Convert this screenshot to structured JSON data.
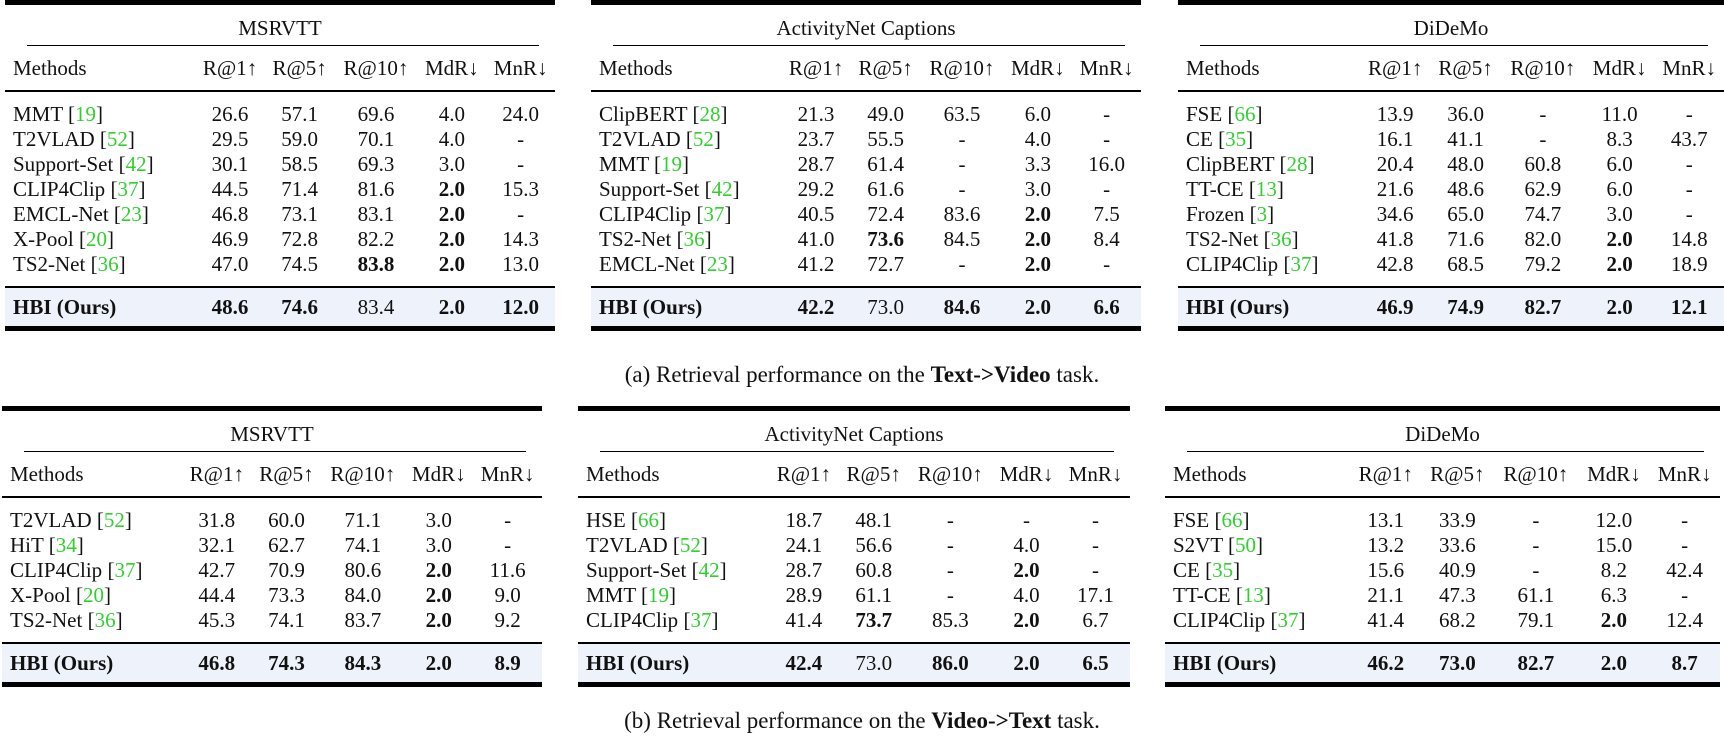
{
  "columns": [
    "Methods",
    "R@1↑",
    "R@5↑",
    "R@10↑",
    "MdR↓",
    "MnR↓"
  ],
  "colors": {
    "citation": "#2fd02f",
    "ours_row_bg": "#eef3fb",
    "rule": "#000000"
  },
  "text_to_video": {
    "caption": {
      "prefix": "(a) Retrieval performance on the ",
      "task": "Text->Video",
      "suffix": " task."
    },
    "tables": [
      {
        "dataset": "MSRVTT",
        "rows": [
          {
            "method": "MMT",
            "cite": "19",
            "values": [
              "26.6",
              "57.1",
              "69.6",
              "4.0",
              "24.0"
            ],
            "bold": []
          },
          {
            "method": "T2VLAD",
            "cite": "52",
            "values": [
              "29.5",
              "59.0",
              "70.1",
              "4.0",
              "-"
            ],
            "bold": []
          },
          {
            "method": "Support-Set",
            "cite": "42",
            "values": [
              "30.1",
              "58.5",
              "69.3",
              "3.0",
              "-"
            ],
            "bold": []
          },
          {
            "method": "CLIP4Clip",
            "cite": "37",
            "values": [
              "44.5",
              "71.4",
              "81.6",
              "2.0",
              "15.3"
            ],
            "bold": [
              3
            ]
          },
          {
            "method": "EMCL-Net",
            "cite": "23",
            "values": [
              "46.8",
              "73.1",
              "83.1",
              "2.0",
              "-"
            ],
            "bold": [
              3
            ]
          },
          {
            "method": "X-Pool",
            "cite": "20",
            "values": [
              "46.9",
              "72.8",
              "82.2",
              "2.0",
              "14.3"
            ],
            "bold": [
              3
            ]
          },
          {
            "method": "TS2-Net",
            "cite": "36",
            "values": [
              "47.0",
              "74.5",
              "83.8",
              "2.0",
              "13.0"
            ],
            "bold": [
              2,
              3
            ]
          }
        ],
        "ours": {
          "method": "HBI (Ours)",
          "values": [
            "48.6",
            "74.6",
            "83.4",
            "2.0",
            "12.0"
          ],
          "bold": [
            0,
            1,
            3,
            4
          ]
        }
      },
      {
        "dataset": "ActivityNet Captions",
        "rows": [
          {
            "method": "ClipBERT",
            "cite": "28",
            "values": [
              "21.3",
              "49.0",
              "63.5",
              "6.0",
              "-"
            ],
            "bold": []
          },
          {
            "method": "T2VLAD",
            "cite": "52",
            "values": [
              "23.7",
              "55.5",
              "-",
              "4.0",
              "-"
            ],
            "bold": []
          },
          {
            "method": "MMT",
            "cite": "19",
            "values": [
              "28.7",
              "61.4",
              "-",
              "3.3",
              "16.0"
            ],
            "bold": []
          },
          {
            "method": "Support-Set",
            "cite": "42",
            "values": [
              "29.2",
              "61.6",
              "-",
              "3.0",
              "-"
            ],
            "bold": []
          },
          {
            "method": "CLIP4Clip",
            "cite": "37",
            "values": [
              "40.5",
              "72.4",
              "83.6",
              "2.0",
              "7.5"
            ],
            "bold": [
              3
            ]
          },
          {
            "method": "TS2-Net",
            "cite": "36",
            "values": [
              "41.0",
              "73.6",
              "84.5",
              "2.0",
              "8.4"
            ],
            "bold": [
              1,
              3
            ]
          },
          {
            "method": "EMCL-Net",
            "cite": "23",
            "values": [
              "41.2",
              "72.7",
              "-",
              "2.0",
              "-"
            ],
            "bold": [
              3
            ]
          }
        ],
        "ours": {
          "method": "HBI (Ours)",
          "values": [
            "42.2",
            "73.0",
            "84.6",
            "2.0",
            "6.6"
          ],
          "bold": [
            0,
            2,
            3,
            4
          ]
        }
      },
      {
        "dataset": "DiDeMo",
        "rows": [
          {
            "method": "FSE",
            "cite": "66",
            "values": [
              "13.9",
              "36.0",
              "-",
              "11.0",
              "-"
            ],
            "bold": []
          },
          {
            "method": "CE",
            "cite": "35",
            "values": [
              "16.1",
              "41.1",
              "-",
              "8.3",
              "43.7"
            ],
            "bold": []
          },
          {
            "method": "ClipBERT",
            "cite": "28",
            "values": [
              "20.4",
              "48.0",
              "60.8",
              "6.0",
              "-"
            ],
            "bold": []
          },
          {
            "method": "TT-CE",
            "cite": "13",
            "values": [
              "21.6",
              "48.6",
              "62.9",
              "6.0",
              "-"
            ],
            "bold": []
          },
          {
            "method": "Frozen",
            "cite": "3",
            "values": [
              "34.6",
              "65.0",
              "74.7",
              "3.0",
              "-"
            ],
            "bold": []
          },
          {
            "method": "TS2-Net",
            "cite": "36",
            "values": [
              "41.8",
              "71.6",
              "82.0",
              "2.0",
              "14.8"
            ],
            "bold": [
              3
            ]
          },
          {
            "method": "CLIP4Clip",
            "cite": "37",
            "values": [
              "42.8",
              "68.5",
              "79.2",
              "2.0",
              "18.9"
            ],
            "bold": [
              3
            ]
          }
        ],
        "ours": {
          "method": "HBI (Ours)",
          "values": [
            "46.9",
            "74.9",
            "82.7",
            "2.0",
            "12.1"
          ],
          "bold": [
            0,
            1,
            2,
            3,
            4
          ]
        }
      }
    ]
  },
  "video_to_text": {
    "caption": {
      "prefix": "(b) Retrieval performance on the ",
      "task": "Video->Text",
      "suffix": " task."
    },
    "tables": [
      {
        "dataset": "MSRVTT",
        "rows": [
          {
            "method": "T2VLAD",
            "cite": "52",
            "values": [
              "31.8",
              "60.0",
              "71.1",
              "3.0",
              "-"
            ],
            "bold": []
          },
          {
            "method": "HiT",
            "cite": "34",
            "values": [
              "32.1",
              "62.7",
              "74.1",
              "3.0",
              "-"
            ],
            "bold": []
          },
          {
            "method": "CLIP4Clip",
            "cite": "37",
            "values": [
              "42.7",
              "70.9",
              "80.6",
              "2.0",
              "11.6"
            ],
            "bold": [
              3
            ]
          },
          {
            "method": "X-Pool",
            "cite": "20",
            "values": [
              "44.4",
              "73.3",
              "84.0",
              "2.0",
              "9.0"
            ],
            "bold": [
              3
            ]
          },
          {
            "method": "TS2-Net",
            "cite": "36",
            "values": [
              "45.3",
              "74.1",
              "83.7",
              "2.0",
              "9.2"
            ],
            "bold": [
              3
            ]
          }
        ],
        "ours": {
          "method": "HBI (Ours)",
          "values": [
            "46.8",
            "74.3",
            "84.3",
            "2.0",
            "8.9"
          ],
          "bold": [
            0,
            1,
            2,
            3,
            4
          ]
        }
      },
      {
        "dataset": "ActivityNet Captions",
        "rows": [
          {
            "method": "HSE",
            "cite": "66",
            "values": [
              "18.7",
              "48.1",
              "-",
              "-",
              "-"
            ],
            "bold": []
          },
          {
            "method": "T2VLAD",
            "cite": "52",
            "values": [
              "24.1",
              "56.6",
              "-",
              "4.0",
              "-"
            ],
            "bold": []
          },
          {
            "method": "Support-Set",
            "cite": "42",
            "values": [
              "28.7",
              "60.8",
              "-",
              "2.0",
              "-"
            ],
            "bold": [
              3
            ]
          },
          {
            "method": "MMT",
            "cite": "19",
            "values": [
              "28.9",
              "61.1",
              "-",
              "4.0",
              "17.1"
            ],
            "bold": []
          },
          {
            "method": "CLIP4Clip",
            "cite": "37",
            "values": [
              "41.4",
              "73.7",
              "85.3",
              "2.0",
              "6.7"
            ],
            "bold": [
              1,
              3
            ]
          }
        ],
        "ours": {
          "method": "HBI (Ours)",
          "values": [
            "42.4",
            "73.0",
            "86.0",
            "2.0",
            "6.5"
          ],
          "bold": [
            0,
            2,
            3,
            4
          ]
        }
      },
      {
        "dataset": "DiDeMo",
        "rows": [
          {
            "method": "FSE",
            "cite": "66",
            "values": [
              "13.1",
              "33.9",
              "-",
              "12.0",
              "-"
            ],
            "bold": []
          },
          {
            "method": "S2VT",
            "cite": "50",
            "values": [
              "13.2",
              "33.6",
              "-",
              "15.0",
              "-"
            ],
            "bold": []
          },
          {
            "method": "CE",
            "cite": "35",
            "values": [
              "15.6",
              "40.9",
              "-",
              "8.2",
              "42.4"
            ],
            "bold": []
          },
          {
            "method": "TT-CE",
            "cite": "13",
            "values": [
              "21.1",
              "47.3",
              "61.1",
              "6.3",
              "-"
            ],
            "bold": []
          },
          {
            "method": "CLIP4Clip",
            "cite": "37",
            "values": [
              "41.4",
              "68.2",
              "79.1",
              "2.0",
              "12.4"
            ],
            "bold": [
              3
            ]
          }
        ],
        "ours": {
          "method": "HBI (Ours)",
          "values": [
            "46.2",
            "73.0",
            "82.7",
            "2.0",
            "8.7"
          ],
          "bold": [
            0,
            1,
            2,
            3,
            4
          ]
        }
      }
    ]
  },
  "chart_data": [
    {
      "type": "table",
      "title": "Text->Video retrieval on MSRVTT",
      "columns": [
        "Methods",
        "R@1",
        "R@5",
        "R@10",
        "MdR",
        "MnR"
      ],
      "rows": [
        [
          "MMT",
          26.6,
          57.1,
          69.6,
          4.0,
          24.0
        ],
        [
          "T2VLAD",
          29.5,
          59.0,
          70.1,
          4.0,
          null
        ],
        [
          "Support-Set",
          30.1,
          58.5,
          69.3,
          3.0,
          null
        ],
        [
          "CLIP4Clip",
          44.5,
          71.4,
          81.6,
          2.0,
          15.3
        ],
        [
          "EMCL-Net",
          46.8,
          73.1,
          83.1,
          2.0,
          null
        ],
        [
          "X-Pool",
          46.9,
          72.8,
          82.2,
          2.0,
          14.3
        ],
        [
          "TS2-Net",
          47.0,
          74.5,
          83.8,
          2.0,
          13.0
        ],
        [
          "HBI (Ours)",
          48.6,
          74.6,
          83.4,
          2.0,
          12.0
        ]
      ]
    },
    {
      "type": "table",
      "title": "Text->Video retrieval on ActivityNet Captions",
      "columns": [
        "Methods",
        "R@1",
        "R@5",
        "R@10",
        "MdR",
        "MnR"
      ],
      "rows": [
        [
          "ClipBERT",
          21.3,
          49.0,
          63.5,
          6.0,
          null
        ],
        [
          "T2VLAD",
          23.7,
          55.5,
          null,
          4.0,
          null
        ],
        [
          "MMT",
          28.7,
          61.4,
          null,
          3.3,
          16.0
        ],
        [
          "Support-Set",
          29.2,
          61.6,
          null,
          3.0,
          null
        ],
        [
          "CLIP4Clip",
          40.5,
          72.4,
          83.6,
          2.0,
          7.5
        ],
        [
          "TS2-Net",
          41.0,
          73.6,
          84.5,
          2.0,
          8.4
        ],
        [
          "EMCL-Net",
          41.2,
          72.7,
          null,
          2.0,
          null
        ],
        [
          "HBI (Ours)",
          42.2,
          73.0,
          84.6,
          2.0,
          6.6
        ]
      ]
    },
    {
      "type": "table",
      "title": "Text->Video retrieval on DiDeMo",
      "columns": [
        "Methods",
        "R@1",
        "R@5",
        "R@10",
        "MdR",
        "MnR"
      ],
      "rows": [
        [
          "FSE",
          13.9,
          36.0,
          null,
          11.0,
          null
        ],
        [
          "CE",
          16.1,
          41.1,
          null,
          8.3,
          43.7
        ],
        [
          "ClipBERT",
          20.4,
          48.0,
          60.8,
          6.0,
          null
        ],
        [
          "TT-CE",
          21.6,
          48.6,
          62.9,
          6.0,
          null
        ],
        [
          "Frozen",
          34.6,
          65.0,
          74.7,
          3.0,
          null
        ],
        [
          "TS2-Net",
          41.8,
          71.6,
          82.0,
          2.0,
          14.8
        ],
        [
          "CLIP4Clip",
          42.8,
          68.5,
          79.2,
          2.0,
          18.9
        ],
        [
          "HBI (Ours)",
          46.9,
          74.9,
          82.7,
          2.0,
          12.1
        ]
      ]
    },
    {
      "type": "table",
      "title": "Video->Text retrieval on MSRVTT",
      "columns": [
        "Methods",
        "R@1",
        "R@5",
        "R@10",
        "MdR",
        "MnR"
      ],
      "rows": [
        [
          "T2VLAD",
          31.8,
          60.0,
          71.1,
          3.0,
          null
        ],
        [
          "HiT",
          32.1,
          62.7,
          74.1,
          3.0,
          null
        ],
        [
          "CLIP4Clip",
          42.7,
          70.9,
          80.6,
          2.0,
          11.6
        ],
        [
          "X-Pool",
          44.4,
          73.3,
          84.0,
          2.0,
          9.0
        ],
        [
          "TS2-Net",
          45.3,
          74.1,
          83.7,
          2.0,
          9.2
        ],
        [
          "HBI (Ours)",
          46.8,
          74.3,
          84.3,
          2.0,
          8.9
        ]
      ]
    },
    {
      "type": "table",
      "title": "Video->Text retrieval on ActivityNet Captions",
      "columns": [
        "Methods",
        "R@1",
        "R@5",
        "R@10",
        "MdR",
        "MnR"
      ],
      "rows": [
        [
          "HSE",
          18.7,
          48.1,
          null,
          null,
          null
        ],
        [
          "T2VLAD",
          24.1,
          56.6,
          null,
          4.0,
          null
        ],
        [
          "Support-Set",
          28.7,
          60.8,
          null,
          2.0,
          null
        ],
        [
          "MMT",
          28.9,
          61.1,
          null,
          4.0,
          17.1
        ],
        [
          "CLIP4Clip",
          41.4,
          73.7,
          85.3,
          2.0,
          6.7
        ],
        [
          "HBI (Ours)",
          42.4,
          73.0,
          86.0,
          2.0,
          6.5
        ]
      ]
    },
    {
      "type": "table",
      "title": "Video->Text retrieval on DiDeMo",
      "columns": [
        "Methods",
        "R@1",
        "R@5",
        "R@10",
        "MdR",
        "MnR"
      ],
      "rows": [
        [
          "FSE",
          13.1,
          33.9,
          null,
          12.0,
          null
        ],
        [
          "S2VT",
          13.2,
          33.6,
          null,
          15.0,
          null
        ],
        [
          "CE",
          15.6,
          40.9,
          null,
          8.2,
          42.4
        ],
        [
          "TT-CE",
          21.1,
          47.3,
          61.1,
          6.3,
          null
        ],
        [
          "CLIP4Clip",
          41.4,
          68.2,
          79.1,
          2.0,
          12.4
        ],
        [
          "HBI (Ours)",
          46.2,
          73.0,
          82.7,
          2.0,
          8.7
        ]
      ]
    }
  ]
}
